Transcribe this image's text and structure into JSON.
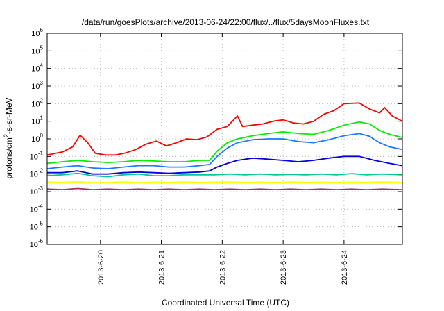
{
  "chart_data": {
    "type": "line",
    "title": "/data/run/goesPlots/archive/2013-06-24/22:00/flux/../flux/5daysMoonFluxes.txt",
    "xlabel": "Coordinated Universal Time (UTC)",
    "ylabel": "protons/cm²-s-sr-MeV",
    "ylabel_parts": {
      "base": "protons/cm",
      "sup": "2",
      "rest": "-s-sr-MeV"
    },
    "y_scale": "log",
    "ylim": [
      1e-06,
      1000000.0
    ],
    "y_ticks": [
      {
        "value": 1e-06,
        "base": "10",
        "exp": "-6"
      },
      {
        "value": 1e-05,
        "base": "10",
        "exp": "-5"
      },
      {
        "value": 0.0001,
        "base": "10",
        "exp": "-4"
      },
      {
        "value": 0.001,
        "base": "10",
        "exp": "-3"
      },
      {
        "value": 0.01,
        "base": "10",
        "exp": "-2"
      },
      {
        "value": 0.1,
        "base": "10",
        "exp": "-1"
      },
      {
        "value": 1.0,
        "base": "10",
        "exp": "0"
      },
      {
        "value": 10.0,
        "base": "10",
        "exp": "1"
      },
      {
        "value": 100.0,
        "base": "10",
        "exp": "2"
      },
      {
        "value": 1000.0,
        "base": "10",
        "exp": "3"
      },
      {
        "value": 10000.0,
        "base": "10",
        "exp": "4"
      },
      {
        "value": 100000.0,
        "base": "10",
        "exp": "5"
      },
      {
        "value": 1000000.0,
        "base": "10",
        "exp": "6"
      }
    ],
    "xlim": [
      "2013-06-19T03:00",
      "2013-06-24T23:00"
    ],
    "x_ticks": [
      {
        "value": "2013-06-20T00:00",
        "label": "2013-6-20"
      },
      {
        "value": "2013-06-21T00:00",
        "label": "2013-6-21"
      },
      {
        "value": "2013-06-22T00:00",
        "label": "2013-6-22"
      },
      {
        "value": "2013-06-23T00:00",
        "label": "2013-6-23"
      },
      {
        "value": "2013-06-24T00:00",
        "label": "2013-6-24"
      }
    ],
    "grid": true,
    "series": [
      {
        "color": "#ff0000",
        "points": [
          [
            "2013-06-19T03:00",
            0.12
          ],
          [
            "2013-06-19T09:00",
            0.18
          ],
          [
            "2013-06-19T13:00",
            0.35
          ],
          [
            "2013-06-19T16:00",
            1.6
          ],
          [
            "2013-06-19T19:00",
            0.6
          ],
          [
            "2013-06-19T22:00",
            0.15
          ],
          [
            "2013-06-20T02:00",
            0.12
          ],
          [
            "2013-06-20T06:00",
            0.12
          ],
          [
            "2013-06-20T10:00",
            0.16
          ],
          [
            "2013-06-20T14:00",
            0.25
          ],
          [
            "2013-06-20T18:00",
            0.5
          ],
          [
            "2013-06-20T22:00",
            0.75
          ],
          [
            "2013-06-21T02:00",
            0.4
          ],
          [
            "2013-06-21T06:00",
            0.6
          ],
          [
            "2013-06-21T10:00",
            1.0
          ],
          [
            "2013-06-21T14:00",
            0.9
          ],
          [
            "2013-06-21T18:00",
            1.3
          ],
          [
            "2013-06-21T22:00",
            3.5
          ],
          [
            "2013-06-22T02:00",
            5.0
          ],
          [
            "2013-06-22T06:00",
            20.0
          ],
          [
            "2013-06-22T08:00",
            5.0
          ],
          [
            "2013-06-22T12:00",
            6.0
          ],
          [
            "2013-06-22T16:00",
            7.0
          ],
          [
            "2013-06-22T20:00",
            10.0
          ],
          [
            "2013-06-23T00:00",
            12.0
          ],
          [
            "2013-06-23T04:00",
            8.0
          ],
          [
            "2013-06-23T08:00",
            7.0
          ],
          [
            "2013-06-23T12:00",
            10.0
          ],
          [
            "2013-06-23T16:00",
            25.0
          ],
          [
            "2013-06-23T20:00",
            40.0
          ],
          [
            "2013-06-24T00:00",
            100.0
          ],
          [
            "2013-06-24T06:00",
            110.0
          ],
          [
            "2013-06-24T10:00",
            50.0
          ],
          [
            "2013-06-24T14:00",
            30.0
          ],
          [
            "2013-06-24T16:00",
            60.0
          ],
          [
            "2013-06-24T19:00",
            20.0
          ],
          [
            "2013-06-24T23:00",
            10.0
          ]
        ]
      },
      {
        "color": "#00ee00",
        "points": [
          [
            "2013-06-19T03:00",
            0.04
          ],
          [
            "2013-06-19T09:00",
            0.05
          ],
          [
            "2013-06-19T15:00",
            0.06
          ],
          [
            "2013-06-19T21:00",
            0.05
          ],
          [
            "2013-06-20T03:00",
            0.045
          ],
          [
            "2013-06-20T09:00",
            0.05
          ],
          [
            "2013-06-20T15:00",
            0.06
          ],
          [
            "2013-06-20T21:00",
            0.055
          ],
          [
            "2013-06-21T03:00",
            0.05
          ],
          [
            "2013-06-21T09:00",
            0.05
          ],
          [
            "2013-06-21T15:00",
            0.06
          ],
          [
            "2013-06-21T19:00",
            0.06
          ],
          [
            "2013-06-21T22:00",
            0.2
          ],
          [
            "2013-06-22T02:00",
            0.6
          ],
          [
            "2013-06-22T06:00",
            1.0
          ],
          [
            "2013-06-22T12:00",
            1.5
          ],
          [
            "2013-06-22T18:00",
            2.0
          ],
          [
            "2013-06-23T00:00",
            2.5
          ],
          [
            "2013-06-23T06:00",
            2.0
          ],
          [
            "2013-06-23T12:00",
            1.8
          ],
          [
            "2013-06-23T18:00",
            3.0
          ],
          [
            "2013-06-24T00:00",
            6.0
          ],
          [
            "2013-06-24T06:00",
            9.0
          ],
          [
            "2013-06-24T10:00",
            7.0
          ],
          [
            "2013-06-24T14:00",
            3.0
          ],
          [
            "2013-06-24T18:00",
            1.8
          ],
          [
            "2013-06-24T23:00",
            1.2
          ]
        ]
      },
      {
        "color": "#1b78ff",
        "points": [
          [
            "2013-06-19T03:00",
            0.02
          ],
          [
            "2013-06-19T09:00",
            0.025
          ],
          [
            "2013-06-19T15:00",
            0.03
          ],
          [
            "2013-06-19T21:00",
            0.022
          ],
          [
            "2013-06-20T03:00",
            0.02
          ],
          [
            "2013-06-20T09:00",
            0.025
          ],
          [
            "2013-06-20T15:00",
            0.03
          ],
          [
            "2013-06-20T21:00",
            0.03
          ],
          [
            "2013-06-21T03:00",
            0.025
          ],
          [
            "2013-06-21T09:00",
            0.025
          ],
          [
            "2013-06-21T15:00",
            0.03
          ],
          [
            "2013-06-21T19:00",
            0.035
          ],
          [
            "2013-06-21T22:00",
            0.1
          ],
          [
            "2013-06-22T02:00",
            0.3
          ],
          [
            "2013-06-22T06:00",
            0.6
          ],
          [
            "2013-06-22T12:00",
            0.9
          ],
          [
            "2013-06-22T18:00",
            1.0
          ],
          [
            "2013-06-23T00:00",
            1.0
          ],
          [
            "2013-06-23T06:00",
            0.7
          ],
          [
            "2013-06-23T12:00",
            0.6
          ],
          [
            "2013-06-23T18:00",
            0.9
          ],
          [
            "2013-06-24T00:00",
            1.5
          ],
          [
            "2013-06-24T06:00",
            2.0
          ],
          [
            "2013-06-24T10:00",
            1.4
          ],
          [
            "2013-06-24T14:00",
            0.6
          ],
          [
            "2013-06-24T18:00",
            0.35
          ],
          [
            "2013-06-24T23:00",
            0.25
          ]
        ]
      },
      {
        "color": "#0000dd",
        "points": [
          [
            "2013-06-19T03:00",
            0.012
          ],
          [
            "2013-06-19T09:00",
            0.012
          ],
          [
            "2013-06-19T15:00",
            0.015
          ],
          [
            "2013-06-19T21:00",
            0.01
          ],
          [
            "2013-06-20T03:00",
            0.01
          ],
          [
            "2013-06-20T09:00",
            0.012
          ],
          [
            "2013-06-20T15:00",
            0.013
          ],
          [
            "2013-06-20T21:00",
            0.012
          ],
          [
            "2013-06-21T03:00",
            0.011
          ],
          [
            "2013-06-21T09:00",
            0.012
          ],
          [
            "2013-06-21T15:00",
            0.013
          ],
          [
            "2013-06-21T19:00",
            0.015
          ],
          [
            "2013-06-21T22:00",
            0.025
          ],
          [
            "2013-06-22T02:00",
            0.04
          ],
          [
            "2013-06-22T06:00",
            0.06
          ],
          [
            "2013-06-22T12:00",
            0.08
          ],
          [
            "2013-06-22T18:00",
            0.07
          ],
          [
            "2013-06-23T00:00",
            0.06
          ],
          [
            "2013-06-23T06:00",
            0.05
          ],
          [
            "2013-06-23T12:00",
            0.06
          ],
          [
            "2013-06-23T18:00",
            0.08
          ],
          [
            "2013-06-24T00:00",
            0.1
          ],
          [
            "2013-06-24T06:00",
            0.1
          ],
          [
            "2013-06-24T12:00",
            0.06
          ],
          [
            "2013-06-24T18:00",
            0.04
          ],
          [
            "2013-06-24T23:00",
            0.03
          ]
        ]
      },
      {
        "color": "#00c896",
        "points": [
          [
            "2013-06-19T03:00",
            0.008
          ],
          [
            "2013-06-19T09:00",
            0.009
          ],
          [
            "2013-06-19T15:00",
            0.011
          ],
          [
            "2013-06-19T21:00",
            0.008
          ],
          [
            "2013-06-20T03:00",
            0.007
          ],
          [
            "2013-06-20T09:00",
            0.009
          ],
          [
            "2013-06-20T15:00",
            0.01
          ],
          [
            "2013-06-20T21:00",
            0.008
          ],
          [
            "2013-06-21T03:00",
            0.008
          ],
          [
            "2013-06-21T09:00",
            0.009
          ],
          [
            "2013-06-21T15:00",
            0.009
          ],
          [
            "2013-06-21T21:00",
            0.009
          ],
          [
            "2013-06-22T03:00",
            0.01
          ],
          [
            "2013-06-22T09:00",
            0.009
          ],
          [
            "2013-06-22T15:00",
            0.01
          ],
          [
            "2013-06-22T21:00",
            0.009
          ],
          [
            "2013-06-23T03:00",
            0.0095
          ],
          [
            "2013-06-23T09:00",
            0.009
          ],
          [
            "2013-06-23T15:00",
            0.01
          ],
          [
            "2013-06-23T21:00",
            0.009
          ],
          [
            "2013-06-24T03:00",
            0.0105
          ],
          [
            "2013-06-24T09:00",
            0.009
          ],
          [
            "2013-06-24T15:00",
            0.01
          ],
          [
            "2013-06-24T23:00",
            0.009
          ]
        ]
      },
      {
        "color": "#ffff00",
        "points": [
          [
            "2013-06-19T03:00",
            0.0035
          ],
          [
            "2013-06-19T09:00",
            0.0033
          ],
          [
            "2013-06-19T15:00",
            0.0036
          ],
          [
            "2013-06-19T21:00",
            0.0032
          ],
          [
            "2013-06-20T03:00",
            0.0033
          ],
          [
            "2013-06-20T09:00",
            0.0035
          ],
          [
            "2013-06-20T15:00",
            0.0032
          ],
          [
            "2013-06-20T21:00",
            0.0034
          ],
          [
            "2013-06-21T03:00",
            0.0033
          ],
          [
            "2013-06-21T09:00",
            0.0035
          ],
          [
            "2013-06-21T15:00",
            0.0033
          ],
          [
            "2013-06-21T21:00",
            0.0034
          ],
          [
            "2013-06-22T03:00",
            0.0035
          ],
          [
            "2013-06-22T09:00",
            0.0033
          ],
          [
            "2013-06-22T15:00",
            0.0034
          ],
          [
            "2013-06-22T21:00",
            0.0033
          ],
          [
            "2013-06-23T03:00",
            0.0035
          ],
          [
            "2013-06-23T09:00",
            0.0033
          ],
          [
            "2013-06-23T15:00",
            0.0034
          ],
          [
            "2013-06-23T21:00",
            0.0033
          ],
          [
            "2013-06-24T03:00",
            0.0034
          ],
          [
            "2013-06-24T09:00",
            0.0033
          ],
          [
            "2013-06-24T15:00",
            0.0035
          ],
          [
            "2013-06-24T23:00",
            0.0033
          ]
        ]
      },
      {
        "color": "#a0306e",
        "points": [
          [
            "2013-06-19T03:00",
            0.0014
          ],
          [
            "2013-06-19T09:00",
            0.0013
          ],
          [
            "2013-06-19T15:00",
            0.0015
          ],
          [
            "2013-06-19T21:00",
            0.0013
          ],
          [
            "2013-06-20T03:00",
            0.0014
          ],
          [
            "2013-06-20T09:00",
            0.0013
          ],
          [
            "2013-06-20T15:00",
            0.0014
          ],
          [
            "2013-06-20T21:00",
            0.0013
          ],
          [
            "2013-06-21T03:00",
            0.0014
          ],
          [
            "2013-06-21T09:00",
            0.0013
          ],
          [
            "2013-06-21T15:00",
            0.0014
          ],
          [
            "2013-06-21T21:00",
            0.0013
          ],
          [
            "2013-06-22T03:00",
            0.0014
          ],
          [
            "2013-06-22T09:00",
            0.0013
          ],
          [
            "2013-06-22T15:00",
            0.0014
          ],
          [
            "2013-06-22T21:00",
            0.0013
          ],
          [
            "2013-06-23T03:00",
            0.0014
          ],
          [
            "2013-06-23T09:00",
            0.0013
          ],
          [
            "2013-06-23T15:00",
            0.0014
          ],
          [
            "2013-06-23T21:00",
            0.0013
          ],
          [
            "2013-06-24T03:00",
            0.0014
          ],
          [
            "2013-06-24T09:00",
            0.0013
          ],
          [
            "2013-06-24T15:00",
            0.0014
          ],
          [
            "2013-06-24T23:00",
            0.0013
          ]
        ]
      }
    ]
  }
}
